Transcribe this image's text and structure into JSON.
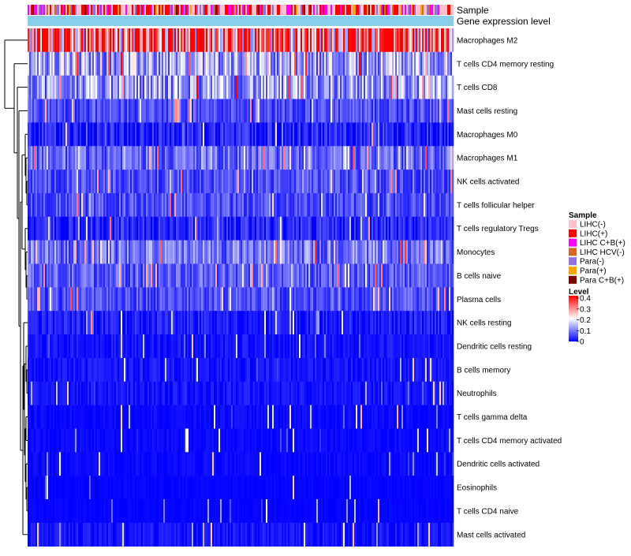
{
  "chart_data": {
    "type": "heatmap",
    "title": "",
    "annotation_tracks": [
      "Sample",
      "Gene expression level"
    ],
    "rows": [
      {
        "label": "Macrophages M2",
        "mean": 0.32
      },
      {
        "label": "T cells CD4 memory resting",
        "mean": 0.13
      },
      {
        "label": "T cells CD8",
        "mean": 0.12
      },
      {
        "label": "Mast cells resting",
        "mean": 0.06
      },
      {
        "label": "Macrophages M0",
        "mean": 0.04
      },
      {
        "label": "Macrophages M1",
        "mean": 0.08
      },
      {
        "label": "NK cells activated",
        "mean": 0.06
      },
      {
        "label": "T cells follicular helper",
        "mean": 0.06
      },
      {
        "label": "T cells regulatory  Tregs",
        "mean": 0.04
      },
      {
        "label": "Monocytes",
        "mean": 0.09
      },
      {
        "label": "B cells naive",
        "mean": 0.07
      },
      {
        "label": "Plasma cells",
        "mean": 0.06
      },
      {
        "label": "NK cells resting",
        "mean": 0.03
      },
      {
        "label": "Dendritic cells resting",
        "mean": 0.02
      },
      {
        "label": "B cells memory",
        "mean": 0.02
      },
      {
        "label": "Neutrophils",
        "mean": 0.02
      },
      {
        "label": "T cells gamma delta",
        "mean": 0.01
      },
      {
        "label": "T cells CD4 memory activated",
        "mean": 0.01
      },
      {
        "label": "Dendritic cells activated",
        "mean": 0.01
      },
      {
        "label": "Eosinophils",
        "mean": 0.005
      },
      {
        "label": "T cells CD4 naive",
        "mean": 0.005
      },
      {
        "label": "Mast cells activated",
        "mean": 0.02
      }
    ],
    "sample_legend": {
      "title": "Sample",
      "items": [
        {
          "label": "LIHC(-)",
          "color": "#ffc0cb"
        },
        {
          "label": "LIHC(+)",
          "color": "#ff0000"
        },
        {
          "label": "LIHC C+B(+)",
          "color": "#ff00ff"
        },
        {
          "label": "LIHC HCV(-)",
          "color": "#d2691e"
        },
        {
          "label": "Para(-)",
          "color": "#9370db"
        },
        {
          "label": "Para(+)",
          "color": "#ffa500"
        },
        {
          "label": "Para C+B(+)",
          "color": "#800000"
        }
      ]
    },
    "level_legend": {
      "title": "Level",
      "ticks": [
        "0.4",
        "0.3",
        "0.2",
        "0.1",
        "0"
      ],
      "range": [
        0,
        0.4
      ],
      "colors": [
        "#0000ff",
        "#ffffff",
        "#ff0000"
      ]
    },
    "gene_expression_color": "#87ceeb"
  }
}
